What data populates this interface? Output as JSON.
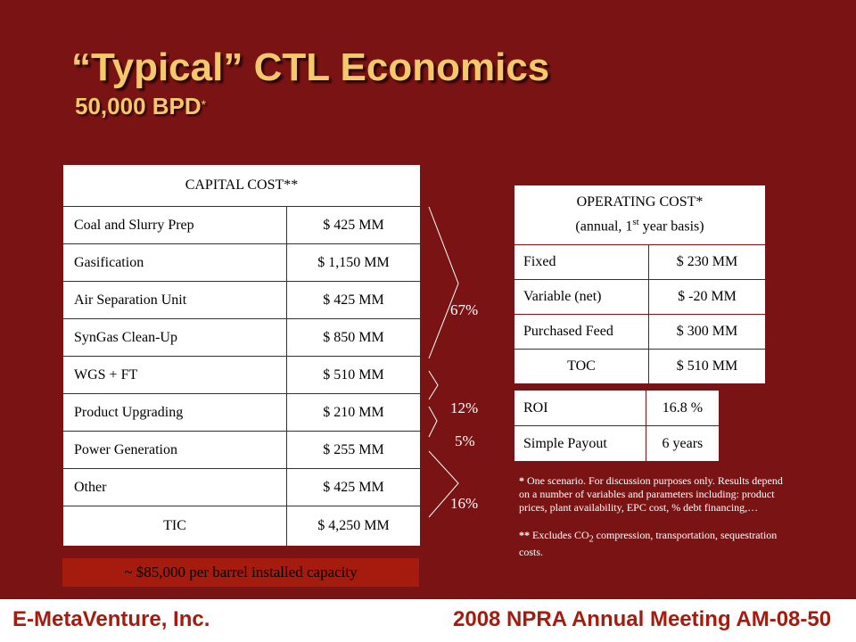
{
  "slide": {
    "title": "“Typical” CTL Economics",
    "subtitle": "50,000 BPD",
    "subtitle_mark": "*"
  },
  "capital": {
    "header": "CAPITAL COST**",
    "rows": [
      {
        "label": "Coal and Slurry Prep",
        "value": "$ 425 MM"
      },
      {
        "label": "Gasification",
        "value": "$ 1,150 MM"
      },
      {
        "label": "Air Separation Unit",
        "value": "$ 425 MM"
      },
      {
        "label": "SynGas Clean-Up",
        "value": "$ 850 MM"
      },
      {
        "label": "WGS + FT",
        "value": "$ 510 MM"
      },
      {
        "label": "Product Upgrading",
        "value": "$ 210 MM"
      },
      {
        "label": "Power Generation",
        "value": "$ 255 MM"
      },
      {
        "label": "Other",
        "value": "$ 425 MM"
      }
    ],
    "total": {
      "label": "TIC",
      "value": "$ 4,250 MM"
    },
    "installed_note": "~ $85,000 per barrel installed capacity"
  },
  "brackets": {
    "p1": "67%",
    "p2": "12%",
    "p3": "5%",
    "p4": "16%"
  },
  "operating": {
    "header_line1": "OPERATING COST*",
    "header_line2_pre": "(annual, 1",
    "header_line2_sup": "st",
    "header_line2_post": " year basis)",
    "rows": [
      {
        "label": "Fixed",
        "value": "$ 230 MM"
      },
      {
        "label": "Variable (net)",
        "value": "$ -20 MM"
      },
      {
        "label": "Purchased Feed",
        "value": "$ 300 MM"
      }
    ],
    "total": {
      "label": "TOC",
      "value": "$ 510 MM"
    }
  },
  "returns": {
    "rows": [
      {
        "label": "ROI",
        "value": "16.8 %"
      },
      {
        "label": "Simple Payout",
        "value": "6 years"
      }
    ]
  },
  "notes": {
    "note1_mark": "*",
    "note1": " One scenario. For discussion purposes only. Results depend on a number of variables and parameters including:  product prices, plant availability, EPC cost, % debt financing,…",
    "note2_mark": "**",
    "note2_pre": " Excludes CO",
    "note2_sub": "2",
    "note2_post": " compression, transportation, sequestration costs."
  },
  "footer": {
    "left": "E-MetaVenture, Inc.",
    "right": "2008 NPRA Annual Meeting AM-08-50"
  },
  "colors": {
    "background": "#7a1414",
    "title": "#f5c96a",
    "accent_red": "#a51b0d"
  }
}
